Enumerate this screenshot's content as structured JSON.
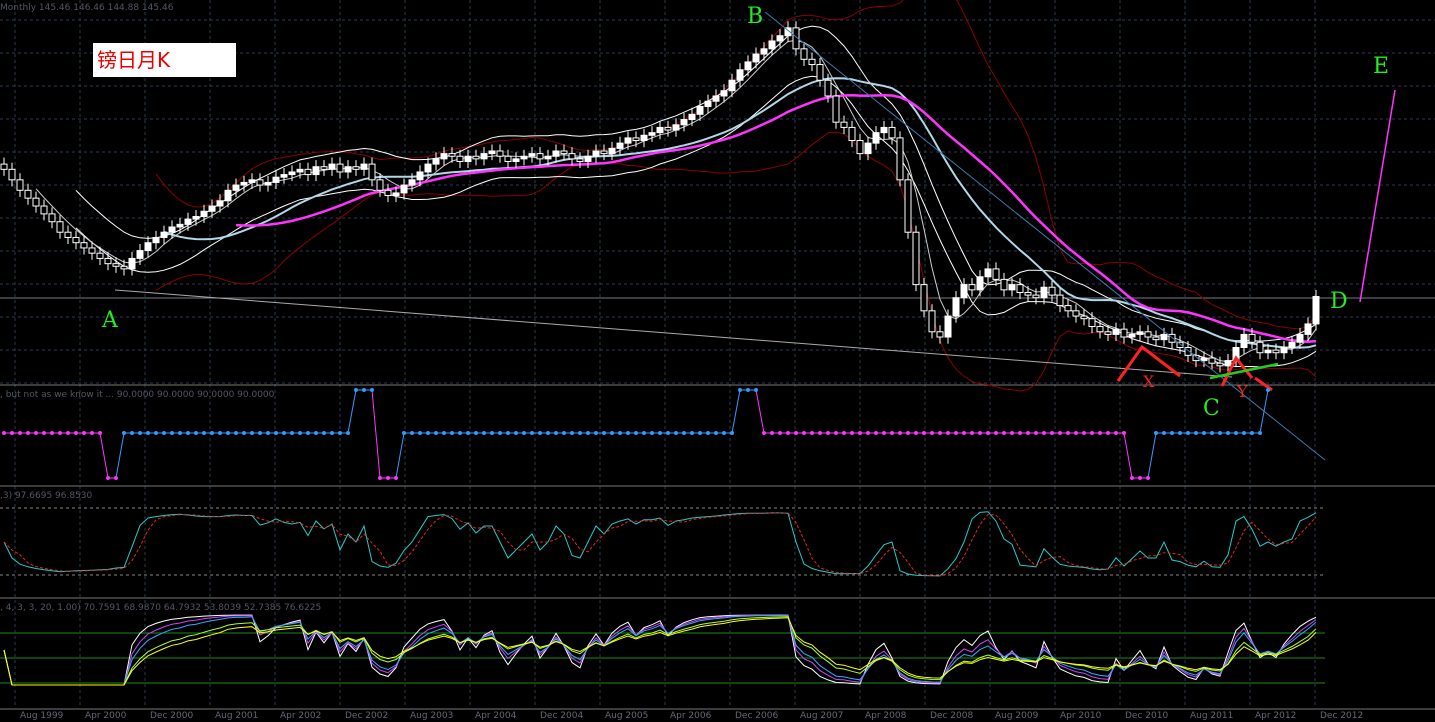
{
  "chart_title": "镑日月K",
  "main_header": "Monthly  145.46 146.46 144.88 145.46",
  "panel2_header": ", but not as we know it ...  90.0000 90.0000 90.0000 90.0000",
  "panel3_header": ",3) 97.6695 96.8530",
  "panel4_header": ", 4, 3, 3, 20, 1.00) 70.7591 68.9870 64.7932 53.8039 52.7385 76.6225",
  "annotations": {
    "A": "A",
    "B": "B",
    "C": "C",
    "D": "D",
    "E": "E",
    "X": "X",
    "Y": "Y"
  },
  "colors": {
    "bull": "#ffffff",
    "bear": "#000000",
    "doji": "#22dd22",
    "bollinger": "#8b0000",
    "envelope": "#ffffff",
    "ma_slow": "#ff33ff",
    "ma_mid": "#b0d8e8",
    "stoch_k": "#22cccc",
    "stoch_d": "#ee2222",
    "signal_up": "#3399ff",
    "signal_down": "#ff33ff"
  },
  "chart_data": {
    "type": "candlestick",
    "timeframe": "Monthly",
    "x_ticks": [
      "Aug 1999",
      "Apr 2000",
      "Dec 2000",
      "Aug 2001",
      "Apr 2002",
      "Dec 2002",
      "Aug 2003",
      "Apr 2004",
      "Dec 2004",
      "Aug 2005",
      "Apr 2006",
      "Dec 2006",
      "Aug 2007",
      "Apr 2008",
      "Dec 2008",
      "Aug 2009",
      "Apr 2010",
      "Dec 2010",
      "Aug 2011",
      "Apr 2012",
      "Dec 2012"
    ],
    "closes": [
      194,
      190,
      186,
      183,
      180,
      177,
      174,
      170,
      168,
      166,
      164,
      162,
      160,
      158,
      157,
      156,
      160,
      163,
      166,
      168,
      170,
      172,
      173,
      175,
      176,
      178,
      180,
      182,
      186,
      188,
      189,
      190,
      188,
      189,
      191,
      192,
      193,
      194,
      192,
      195,
      194,
      196,
      193,
      195,
      194,
      196,
      190,
      186,
      184,
      185,
      188,
      190,
      193,
      196,
      198,
      200,
      199,
      197,
      199,
      198,
      200,
      201,
      199,
      197,
      198,
      199,
      200,
      198,
      199,
      201,
      200,
      198,
      197,
      199,
      201,
      200,
      202,
      204,
      206,
      205,
      207,
      208,
      210,
      209,
      211,
      213,
      215,
      218,
      220,
      222,
      224,
      228,
      232,
      235,
      238,
      240,
      243,
      245,
      248,
      240,
      236,
      234,
      228,
      222,
      212,
      210,
      205,
      200,
      204,
      208,
      210,
      206,
      190,
      170,
      150,
      140,
      132,
      130,
      138,
      145,
      150,
      148,
      153,
      156,
      152,
      148,
      150,
      147,
      146,
      145,
      149,
      146,
      142,
      140,
      138,
      137,
      134,
      132,
      131,
      133,
      130,
      131,
      132,
      130,
      129,
      131,
      128,
      126,
      123,
      121,
      122,
      120,
      119,
      121,
      126,
      131,
      128,
      124,
      125,
      124,
      126,
      128,
      131,
      135,
      145.46
    ],
    "signal_runs": [
      [
        "down",
        13
      ],
      [
        "low",
        2
      ],
      [
        "up",
        29
      ],
      [
        "high",
        3
      ],
      [
        "low",
        3
      ],
      [
        "up",
        42
      ],
      [
        "high",
        3
      ],
      [
        "down",
        46
      ],
      [
        "low",
        3
      ],
      [
        "up",
        14
      ],
      [
        "high",
        1
      ]
    ]
  }
}
